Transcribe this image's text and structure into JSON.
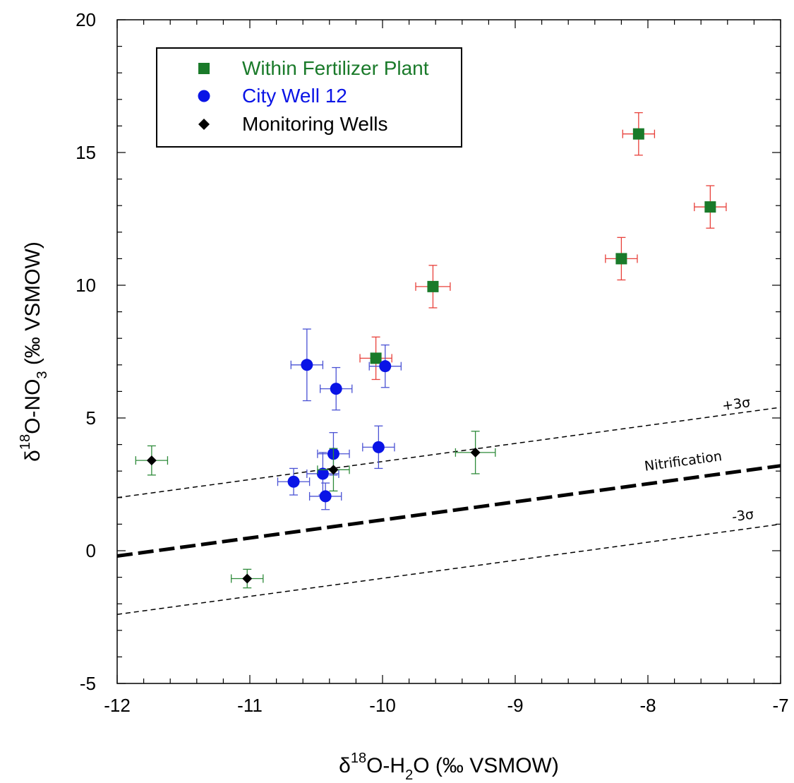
{
  "chart_data": {
    "type": "scatter",
    "xlabel": {
      "delta": "δ",
      "sup": "18",
      "mid": "O-H",
      "sub": "2",
      "rest": "O (‰ VSMOW)"
    },
    "ylabel": {
      "delta": "δ",
      "sup": "18",
      "mid": "O-NO",
      "sub": "3",
      "rest": " (‰ VSMOW)"
    },
    "xlim": [
      -12,
      -7
    ],
    "ylim": [
      -5,
      20
    ],
    "x_ticks": [
      "-12",
      "-11",
      "-10",
      "-9",
      "-8",
      "-7"
    ],
    "y_ticks": [
      "-5",
      "0",
      "5",
      "10",
      "15",
      "20"
    ],
    "grid": false,
    "legend_position": "top-left",
    "series": [
      {
        "name": "Within Fertilizer Plant",
        "marker": "square",
        "color": "#1a7a2a",
        "error_color": "#e8403a",
        "points": [
          {
            "x": -10.05,
            "y": 7.25,
            "xerr": 0.12,
            "yerr": 0.8
          },
          {
            "x": -9.62,
            "y": 9.95,
            "xerr": 0.13,
            "yerr": 0.8
          },
          {
            "x": -8.2,
            "y": 11.0,
            "xerr": 0.12,
            "yerr": 0.8
          },
          {
            "x": -8.07,
            "y": 15.7,
            "xerr": 0.12,
            "yerr": 0.8
          },
          {
            "x": -7.53,
            "y": 12.95,
            "xerr": 0.12,
            "yerr": 0.8
          }
        ]
      },
      {
        "name": "City Well 12",
        "marker": "circle",
        "color": "#0a14e6",
        "error_color": "#4a52d4",
        "points": [
          {
            "x": -10.57,
            "y": 7.0,
            "xerr": 0.12,
            "yerr": 1.35
          },
          {
            "x": -10.35,
            "y": 6.1,
            "xerr": 0.12,
            "yerr": 0.8
          },
          {
            "x": -9.98,
            "y": 6.95,
            "xerr": 0.12,
            "yerr": 0.8
          },
          {
            "x": -10.37,
            "y": 3.65,
            "xerr": 0.12,
            "yerr": 0.8
          },
          {
            "x": -10.03,
            "y": 3.9,
            "xerr": 0.12,
            "yerr": 0.8
          },
          {
            "x": -10.45,
            "y": 2.9,
            "xerr": 0.12,
            "yerr": 0.8
          },
          {
            "x": -10.67,
            "y": 2.6,
            "xerr": 0.12,
            "yerr": 0.5
          },
          {
            "x": -10.43,
            "y": 2.05,
            "xerr": 0.12,
            "yerr": 0.5
          }
        ]
      },
      {
        "name": "Monitoring Wells",
        "marker": "diamond",
        "color": "#000000",
        "error_color": "#2e8b3a",
        "points": [
          {
            "x": -11.74,
            "y": 3.4,
            "xerr": 0.12,
            "yerr": 0.55
          },
          {
            "x": -11.02,
            "y": -1.05,
            "xerr": 0.12,
            "yerr": 0.35
          },
          {
            "x": -10.37,
            "y": 3.05,
            "xerr": 0.12,
            "yerr": 0.8
          },
          {
            "x": -9.3,
            "y": 3.7,
            "xerr": 0.15,
            "yerr": 0.8
          }
        ]
      }
    ],
    "lines": [
      {
        "name": "Nitrification",
        "style": "thick-dashed",
        "x": [
          -12,
          -7
        ],
        "y": [
          -0.2,
          3.2
        ]
      },
      {
        "name": "+3σ",
        "style": "thin-dashed",
        "x": [
          -12,
          -7
        ],
        "y": [
          2.0,
          5.4
        ]
      },
      {
        "name": "-3σ",
        "style": "thin-dashed",
        "x": [
          -12,
          -7
        ],
        "y": [
          -2.4,
          1.0
        ]
      }
    ],
    "annotations": [
      {
        "text": "+3σ",
        "x": -7.33,
        "y": 5.25
      },
      {
        "text": "Nitrification",
        "x": -7.73,
        "y": 3.1
      },
      {
        "text": "-3σ",
        "x": -7.28,
        "y": 1.05
      }
    ]
  }
}
